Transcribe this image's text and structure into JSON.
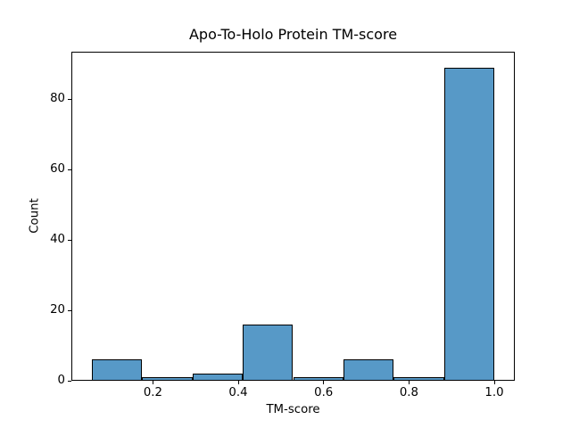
{
  "figure": {
    "background": "#ffffff"
  },
  "chart_data": {
    "type": "bar",
    "subtype": "histogram",
    "title": "Apo-To-Holo Protein TM-score",
    "xlabel": "TM-score",
    "ylabel": "Count",
    "bin_edges": [
      0.057,
      0.1749,
      0.2928,
      0.4106,
      0.5285,
      0.6464,
      0.7643,
      0.8821,
      1.0
    ],
    "counts": [
      6,
      1,
      2,
      16,
      1,
      6,
      1,
      89
    ],
    "x_ticks": [
      {
        "value": 0.2,
        "label": "0.2"
      },
      {
        "value": 0.4,
        "label": "0.4"
      },
      {
        "value": 0.6,
        "label": "0.6"
      },
      {
        "value": 0.8,
        "label": "0.8"
      },
      {
        "value": 1.0,
        "label": "1.0"
      }
    ],
    "y_ticks": [
      {
        "value": 0,
        "label": "0"
      },
      {
        "value": 20,
        "label": "20"
      },
      {
        "value": 40,
        "label": "40"
      },
      {
        "value": 60,
        "label": "60"
      },
      {
        "value": 80,
        "label": "80"
      }
    ],
    "xlim": [
      0.009,
      1.048
    ],
    "ylim": [
      0,
      93.45
    ],
    "grid": false,
    "legend": null,
    "colors": {
      "bar_fill": "#5799c7",
      "bar_edge": "#000000",
      "axis": "#000000",
      "text": "#000000",
      "background": "#ffffff"
    }
  }
}
